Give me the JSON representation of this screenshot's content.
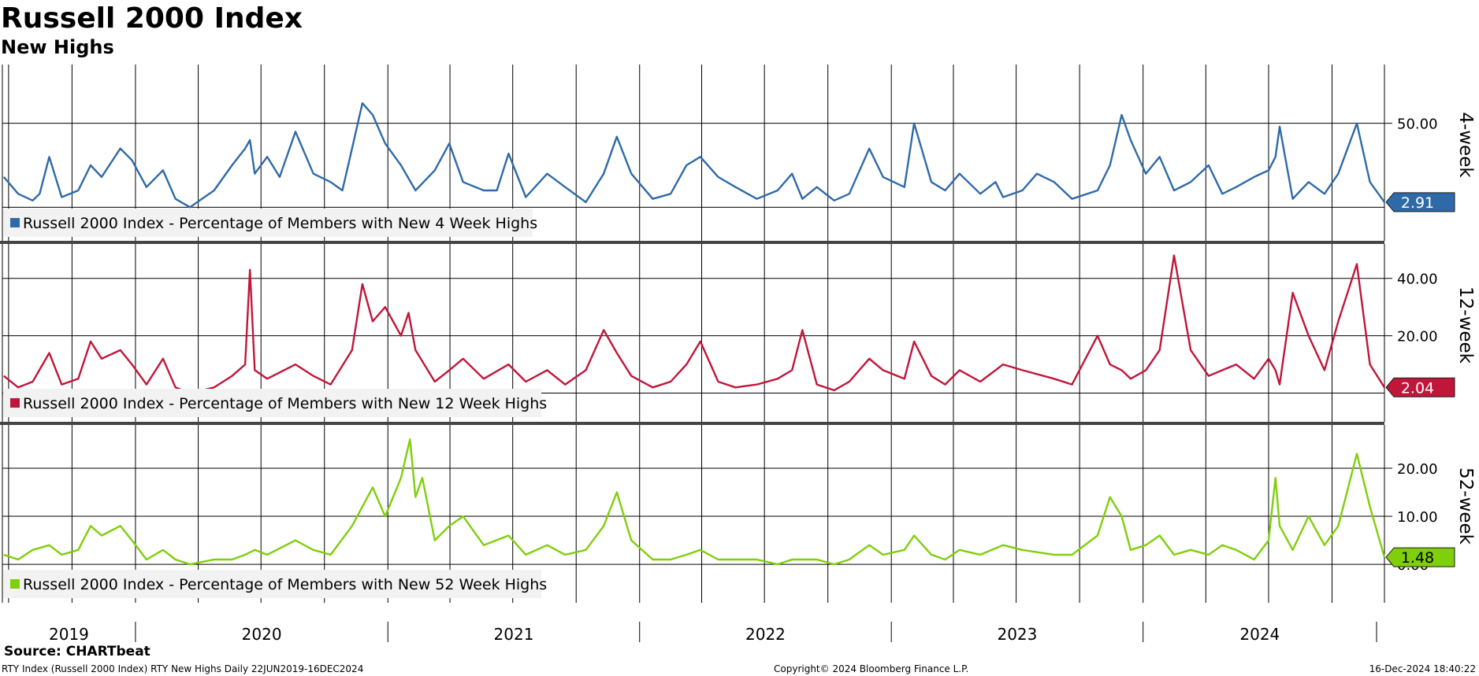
{
  "title": "Russell 2000 Index",
  "subtitle": "New Highs",
  "source": "Source: CHARTbeat",
  "footer": {
    "left": "RTY Index (Russell 2000 Index) RTY New Highs  Daily 22JUN2019-16DEC2024",
    "center": "Copyright© 2024 Bloomberg Finance L.P.",
    "right": "16-Dec-2024 18:40:22"
  },
  "x_axis": {
    "start": "2019-06-22",
    "end": "2024-12-16",
    "year_labels": [
      "2019",
      "2020",
      "2021",
      "2022",
      "2023",
      "2024"
    ]
  },
  "chart_data": [
    {
      "type": "line",
      "panel_label": "4-week",
      "legend": "Russell 2000 Index - Percentage of Members with New 4 Week Highs",
      "color": "#2f6aa8",
      "last_value": "2.91",
      "ytick_labels": [
        "50.00"
      ],
      "yticks": [
        50
      ],
      "ylim": [
        -20,
        85
      ],
      "grid": true,
      "x": [
        "2019-06-24",
        "2019-07-15",
        "2019-08-05",
        "2019-08-15",
        "2019-08-29",
        "2019-09-16",
        "2019-10-10",
        "2019-10-28",
        "2019-11-13",
        "2019-12-10",
        "2019-12-27",
        "2020-01-17",
        "2020-02-10",
        "2020-02-28",
        "2020-03-20",
        "2020-04-24",
        "2020-05-20",
        "2020-06-08",
        "2020-06-15",
        "2020-06-22",
        "2020-07-10",
        "2020-07-28",
        "2020-08-20",
        "2020-09-15",
        "2020-10-10",
        "2020-10-27",
        "2020-11-10",
        "2020-11-25",
        "2020-12-10",
        "2020-12-28",
        "2021-01-20",
        "2021-02-10",
        "2021-03-10",
        "2021-03-31",
        "2021-04-20",
        "2021-05-20",
        "2021-06-08",
        "2021-06-25",
        "2021-07-20",
        "2021-08-20",
        "2021-09-15",
        "2021-10-15",
        "2021-11-10",
        "2021-11-29",
        "2021-12-20",
        "2022-01-20",
        "2022-02-15",
        "2022-03-10",
        "2022-03-30",
        "2022-04-25",
        "2022-05-20",
        "2022-06-20",
        "2022-07-20",
        "2022-08-10",
        "2022-08-25",
        "2022-09-15",
        "2022-10-10",
        "2022-11-01",
        "2022-11-30",
        "2022-12-20",
        "2023-01-20",
        "2023-02-03",
        "2023-02-28",
        "2023-03-20",
        "2023-04-10",
        "2023-05-10",
        "2023-06-01",
        "2023-06-12",
        "2023-07-10",
        "2023-07-31",
        "2023-08-25",
        "2023-09-20",
        "2023-10-27",
        "2023-11-14",
        "2023-12-01",
        "2023-12-14",
        "2024-01-05",
        "2024-01-25",
        "2024-02-15",
        "2024-03-10",
        "2024-04-05",
        "2024-04-25",
        "2024-05-15",
        "2024-06-10",
        "2024-07-01",
        "2024-07-11",
        "2024-07-17",
        "2024-08-05",
        "2024-08-28",
        "2024-09-20",
        "2024-10-10",
        "2024-11-06",
        "2024-11-25",
        "2024-12-16"
      ],
      "values": [
        18,
        8,
        4,
        8,
        30,
        6,
        10,
        25,
        18,
        35,
        28,
        12,
        22,
        5,
        0,
        10,
        25,
        35,
        40,
        20,
        30,
        18,
        45,
        20,
        15,
        10,
        35,
        62,
        55,
        38,
        25,
        10,
        22,
        38,
        15,
        10,
        10,
        32,
        6,
        20,
        12,
        3,
        20,
        42,
        20,
        5,
        8,
        25,
        30,
        18,
        12,
        5,
        10,
        20,
        5,
        12,
        4,
        8,
        35,
        18,
        12,
        50,
        15,
        10,
        20,
        8,
        15,
        6,
        10,
        20,
        15,
        5,
        10,
        25,
        55,
        40,
        20,
        30,
        10,
        15,
        25,
        8,
        12,
        18,
        22,
        30,
        48,
        5,
        15,
        8,
        20,
        50,
        15,
        3
      ]
    },
    {
      "type": "line",
      "panel_label": "12-week",
      "legend": "Russell 2000 Index - Percentage of Members with New 12 Week Highs",
      "color": "#c0163a",
      "last_value": "2.04",
      "ytick_labels": [
        "40.00",
        "20.00"
      ],
      "yticks": [
        40,
        20
      ],
      "ylim": [
        -10,
        52
      ],
      "grid": true,
      "x": [
        "2019-06-24",
        "2019-07-15",
        "2019-08-05",
        "2019-08-29",
        "2019-09-16",
        "2019-10-10",
        "2019-10-28",
        "2019-11-13",
        "2019-12-10",
        "2019-12-27",
        "2020-01-17",
        "2020-02-10",
        "2020-02-28",
        "2020-03-20",
        "2020-04-24",
        "2020-05-20",
        "2020-06-08",
        "2020-06-15",
        "2020-06-22",
        "2020-07-10",
        "2020-08-20",
        "2020-09-15",
        "2020-10-10",
        "2020-11-10",
        "2020-11-25",
        "2020-12-10",
        "2020-12-28",
        "2021-01-20",
        "2021-01-31",
        "2021-02-10",
        "2021-03-10",
        "2021-03-31",
        "2021-04-20",
        "2021-05-20",
        "2021-06-25",
        "2021-07-20",
        "2021-08-20",
        "2021-09-15",
        "2021-10-15",
        "2021-11-10",
        "2021-11-29",
        "2021-12-20",
        "2022-01-20",
        "2022-02-15",
        "2022-03-10",
        "2022-03-30",
        "2022-04-25",
        "2022-05-20",
        "2022-06-20",
        "2022-07-20",
        "2022-08-10",
        "2022-08-25",
        "2022-09-15",
        "2022-10-10",
        "2022-11-01",
        "2022-11-30",
        "2022-12-20",
        "2023-01-20",
        "2023-02-03",
        "2023-02-28",
        "2023-03-20",
        "2023-04-10",
        "2023-05-10",
        "2023-06-12",
        "2023-07-10",
        "2023-08-25",
        "2023-09-20",
        "2023-10-27",
        "2023-11-14",
        "2023-12-01",
        "2023-12-14",
        "2024-01-05",
        "2024-01-25",
        "2024-02-15",
        "2024-03-10",
        "2024-04-05",
        "2024-04-25",
        "2024-05-15",
        "2024-06-10",
        "2024-07-01",
        "2024-07-11",
        "2024-07-17",
        "2024-08-05",
        "2024-08-28",
        "2024-09-20",
        "2024-10-10",
        "2024-11-06",
        "2024-11-25",
        "2024-12-16"
      ],
      "values": [
        6,
        2,
        4,
        14,
        3,
        5,
        18,
        12,
        15,
        10,
        3,
        12,
        2,
        0,
        2,
        6,
        10,
        43,
        8,
        5,
        10,
        6,
        3,
        15,
        38,
        25,
        30,
        20,
        28,
        15,
        4,
        8,
        12,
        5,
        10,
        4,
        8,
        3,
        8,
        22,
        14,
        6,
        2,
        4,
        10,
        18,
        4,
        2,
        3,
        5,
        8,
        22,
        3,
        1,
        4,
        12,
        8,
        5,
        18,
        6,
        3,
        8,
        4,
        10,
        8,
        5,
        3,
        20,
        10,
        8,
        5,
        8,
        15,
        48,
        15,
        6,
        8,
        10,
        5,
        12,
        8,
        3,
        35,
        20,
        8,
        25,
        45,
        10,
        2
      ]
    },
    {
      "type": "line",
      "panel_label": "52-week",
      "legend": "Russell 2000 Index - Percentage of Members with New 52 Week Highs",
      "color": "#7fcf0a",
      "last_value": "1.48",
      "ytick_labels": [
        "20.00",
        "10.00",
        "0.00"
      ],
      "yticks": [
        20,
        10,
        0
      ],
      "ylim": [
        -8,
        29
      ],
      "grid": true,
      "x": [
        "2019-06-24",
        "2019-07-15",
        "2019-08-05",
        "2019-08-29",
        "2019-09-16",
        "2019-10-10",
        "2019-10-28",
        "2019-11-13",
        "2019-12-10",
        "2019-12-27",
        "2020-01-17",
        "2020-02-10",
        "2020-02-28",
        "2020-03-20",
        "2020-04-24",
        "2020-05-20",
        "2020-06-08",
        "2020-06-22",
        "2020-07-10",
        "2020-08-20",
        "2020-09-15",
        "2020-10-10",
        "2020-11-10",
        "2020-11-25",
        "2020-12-10",
        "2020-12-28",
        "2021-01-20",
        "2021-02-02",
        "2021-02-10",
        "2021-02-20",
        "2021-03-10",
        "2021-03-31",
        "2021-04-20",
        "2021-05-20",
        "2021-06-25",
        "2021-07-20",
        "2021-08-20",
        "2021-09-15",
        "2021-10-15",
        "2021-11-10",
        "2021-11-29",
        "2021-12-20",
        "2022-01-20",
        "2022-02-15",
        "2022-03-10",
        "2022-03-30",
        "2022-04-25",
        "2022-05-20",
        "2022-06-20",
        "2022-07-20",
        "2022-08-10",
        "2022-08-25",
        "2022-09-15",
        "2022-10-10",
        "2022-11-01",
        "2022-11-30",
        "2022-12-20",
        "2023-01-20",
        "2023-02-03",
        "2023-02-28",
        "2023-03-20",
        "2023-04-10",
        "2023-05-10",
        "2023-06-12",
        "2023-07-10",
        "2023-08-25",
        "2023-09-20",
        "2023-10-27",
        "2023-11-14",
        "2023-12-01",
        "2023-12-14",
        "2024-01-05",
        "2024-01-25",
        "2024-02-15",
        "2024-03-10",
        "2024-04-05",
        "2024-04-25",
        "2024-05-15",
        "2024-06-10",
        "2024-07-01",
        "2024-07-11",
        "2024-07-17",
        "2024-08-05",
        "2024-08-28",
        "2024-09-20",
        "2024-10-10",
        "2024-11-06",
        "2024-11-25",
        "2024-12-16"
      ],
      "values": [
        2,
        1,
        3,
        4,
        2,
        3,
        8,
        6,
        8,
        5,
        1,
        3,
        1,
        0,
        1,
        1,
        2,
        3,
        2,
        5,
        3,
        2,
        8,
        12,
        16,
        10,
        18,
        26,
        14,
        18,
        5,
        8,
        10,
        4,
        6,
        2,
        4,
        2,
        3,
        8,
        15,
        5,
        1,
        1,
        2,
        3,
        1,
        1,
        1,
        0,
        1,
        1,
        1,
        0,
        1,
        4,
        2,
        3,
        6,
        2,
        1,
        3,
        2,
        4,
        3,
        2,
        2,
        6,
        14,
        10,
        3,
        4,
        6,
        2,
        3,
        2,
        4,
        3,
        1,
        5,
        18,
        8,
        3,
        10,
        4,
        8,
        23,
        12,
        1.48
      ]
    }
  ]
}
